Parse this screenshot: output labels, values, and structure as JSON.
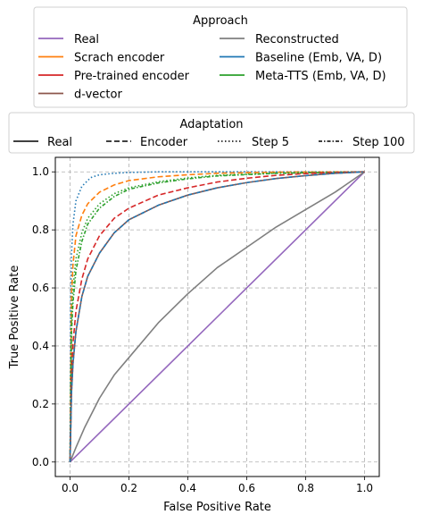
{
  "chart_data": {
    "type": "line",
    "title": "",
    "xlabel": "False Positive Rate",
    "ylabel": "True Positive Rate",
    "xlim": [
      -0.05,
      1.05
    ],
    "ylim": [
      -0.05,
      1.05
    ],
    "xticks": [
      "0.0",
      "0.2",
      "0.4",
      "0.6",
      "0.8",
      "1.0"
    ],
    "yticks": [
      "0.0",
      "0.2",
      "0.4",
      "0.6",
      "0.8",
      "1.0"
    ],
    "grid": true,
    "legends": [
      {
        "title": "Approach",
        "placement": "top",
        "entries": [
          {
            "label": "Real",
            "color": "#9467bd"
          },
          {
            "label": "Reconstructed",
            "color": "#7f7f7f"
          },
          {
            "label": "Scrach encoder",
            "color": "#ff7f0e"
          },
          {
            "label": "Baseline (Emb, VA, D)",
            "color": "#1f77b4"
          },
          {
            "label": "Pre-trained encoder",
            "color": "#d62728"
          },
          {
            "label": "Meta-TTS (Emb, VA, D)",
            "color": "#2ca02c"
          },
          {
            "label": "d-vector",
            "color": "#8c564b"
          }
        ]
      },
      {
        "title": "Adaptation",
        "placement": "top",
        "entries": [
          {
            "label": "Real",
            "dash": "solid"
          },
          {
            "label": "Encoder",
            "dash": "dashed"
          },
          {
            "label": "Step 5",
            "dash": "dotted"
          },
          {
            "label": "Step 100",
            "dash": "dashdot"
          }
        ]
      }
    ],
    "series": [
      {
        "approach": "Real",
        "adaptation": "Real",
        "color": "#9467bd",
        "dash": "solid",
        "x": [
          0,
          1
        ],
        "y": [
          0,
          1
        ]
      },
      {
        "approach": "Reconstructed",
        "adaptation": "Real",
        "color": "#7f7f7f",
        "dash": "solid",
        "x": [
          0,
          0.02,
          0.05,
          0.1,
          0.15,
          0.2,
          0.3,
          0.4,
          0.5,
          0.6,
          0.7,
          0.8,
          0.9,
          1.0
        ],
        "y": [
          0,
          0.05,
          0.12,
          0.22,
          0.3,
          0.36,
          0.48,
          0.58,
          0.67,
          0.74,
          0.81,
          0.87,
          0.93,
          1.0
        ]
      },
      {
        "approach": "Baseline (Emb, VA, D)",
        "adaptation": "Step 5",
        "color": "#1f77b4",
        "dash": "dotted",
        "x": [
          0,
          0.002,
          0.005,
          0.01,
          0.02,
          0.04,
          0.07,
          0.1,
          0.15,
          0.2,
          0.3,
          0.5,
          0.7,
          1.0
        ],
        "y": [
          0,
          0.55,
          0.72,
          0.82,
          0.9,
          0.95,
          0.98,
          0.99,
          0.995,
          0.998,
          1.0,
          1.0,
          1.0,
          1.0
        ]
      },
      {
        "approach": "Scrach encoder",
        "adaptation": "Encoder",
        "color": "#ff7f0e",
        "dash": "dashed",
        "x": [
          0,
          0.005,
          0.01,
          0.02,
          0.04,
          0.06,
          0.1,
          0.15,
          0.2,
          0.3,
          0.4,
          0.5,
          0.7,
          1.0
        ],
        "y": [
          0,
          0.58,
          0.68,
          0.78,
          0.85,
          0.89,
          0.93,
          0.955,
          0.97,
          0.983,
          0.99,
          0.995,
          0.999,
          1.0
        ]
      },
      {
        "approach": "Meta-TTS (Emb, VA, D)",
        "adaptation": "Step 5",
        "color": "#2ca02c",
        "dash": "dotted",
        "x": [
          0,
          0.005,
          0.01,
          0.02,
          0.04,
          0.06,
          0.1,
          0.15,
          0.2,
          0.3,
          0.4,
          0.5,
          0.7,
          1.0
        ],
        "y": [
          0,
          0.5,
          0.6,
          0.7,
          0.79,
          0.84,
          0.89,
          0.925,
          0.945,
          0.966,
          0.979,
          0.988,
          0.996,
          1.0
        ]
      },
      {
        "approach": "Meta-TTS (Emb, VA, D)",
        "adaptation": "Step 100",
        "color": "#2ca02c",
        "dash": "dashdot",
        "x": [
          0,
          0.005,
          0.01,
          0.02,
          0.04,
          0.06,
          0.1,
          0.15,
          0.2,
          0.3,
          0.4,
          0.5,
          0.7,
          1.0
        ],
        "y": [
          0,
          0.45,
          0.55,
          0.66,
          0.76,
          0.82,
          0.875,
          0.915,
          0.94,
          0.962,
          0.976,
          0.986,
          0.995,
          1.0
        ]
      },
      {
        "approach": "Pre-trained encoder",
        "adaptation": "Encoder",
        "color": "#d62728",
        "dash": "dashed",
        "x": [
          0,
          0.005,
          0.01,
          0.02,
          0.04,
          0.06,
          0.1,
          0.15,
          0.2,
          0.3,
          0.4,
          0.5,
          0.6,
          0.7,
          0.8,
          0.9,
          1.0
        ],
        "y": [
          0,
          0.3,
          0.41,
          0.52,
          0.63,
          0.7,
          0.78,
          0.84,
          0.875,
          0.92,
          0.945,
          0.965,
          0.978,
          0.988,
          0.994,
          0.998,
          1.0
        ]
      },
      {
        "approach": "d-vector",
        "adaptation": "Real",
        "color": "#8c564b",
        "dash": "solid",
        "x": [
          0,
          0.005,
          0.01,
          0.02,
          0.04,
          0.06,
          0.1,
          0.15,
          0.2,
          0.3,
          0.4,
          0.5,
          0.6,
          0.7,
          0.8,
          0.9,
          1.0
        ],
        "y": [
          0,
          0.24,
          0.34,
          0.45,
          0.57,
          0.64,
          0.72,
          0.79,
          0.835,
          0.885,
          0.92,
          0.945,
          0.963,
          0.977,
          0.987,
          0.995,
          1.0
        ]
      },
      {
        "approach": "Baseline (Emb, VA, D)",
        "adaptation": "Step 100",
        "color": "#1f77b4",
        "dash": "dashdot",
        "x": [
          0,
          0.005,
          0.01,
          0.02,
          0.04,
          0.06,
          0.1,
          0.15,
          0.2,
          0.3,
          0.4,
          0.5,
          0.6,
          0.7,
          0.8,
          0.9,
          1.0
        ],
        "y": [
          0,
          0.24,
          0.34,
          0.45,
          0.57,
          0.64,
          0.72,
          0.79,
          0.835,
          0.885,
          0.92,
          0.945,
          0.963,
          0.977,
          0.987,
          0.995,
          1.0
        ]
      }
    ]
  }
}
